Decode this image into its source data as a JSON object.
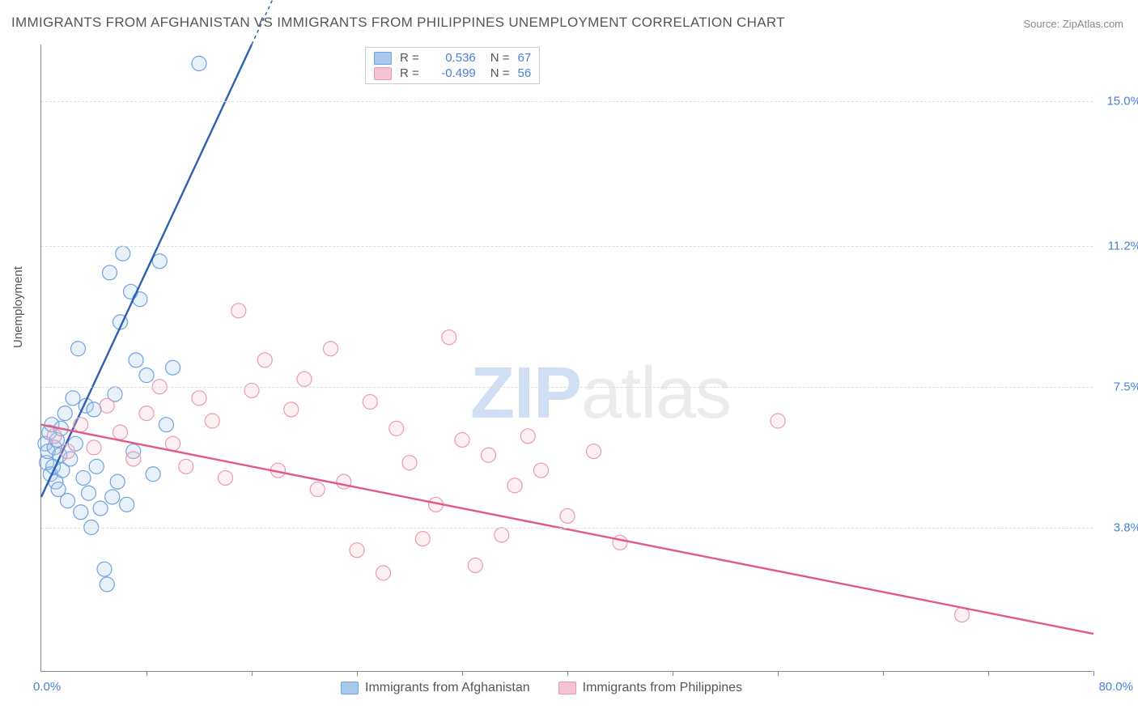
{
  "title": "IMMIGRANTS FROM AFGHANISTAN VS IMMIGRANTS FROM PHILIPPINES UNEMPLOYMENT CORRELATION CHART",
  "source": "Source: ZipAtlas.com",
  "watermark": {
    "left": "ZIP",
    "right": "atlas"
  },
  "ylabel": "Unemployment",
  "chart": {
    "type": "scatter",
    "background_color": "#ffffff",
    "grid_color": "#dddddd",
    "axis_color": "#888888",
    "label_color": "#4a7fd6",
    "xlim": [
      0,
      80
    ],
    "ylim": [
      0,
      16.5
    ],
    "x_min_label": "0.0%",
    "x_max_label": "80.0%",
    "yticks": [
      {
        "v": 3.8,
        "label": "3.8%"
      },
      {
        "v": 7.5,
        "label": "7.5%"
      },
      {
        "v": 11.2,
        "label": "11.2%"
      },
      {
        "v": 15.0,
        "label": "15.0%"
      }
    ],
    "xticks": [
      8,
      16,
      24,
      32,
      40,
      48,
      56,
      64,
      72,
      80
    ],
    "marker_radius": 9,
    "marker_stroke_width": 1.2,
    "marker_fill_opacity": 0.25,
    "trend_line_width": 2.4,
    "series": [
      {
        "name": "Immigrants from Afghanistan",
        "color": "#6fa3e0",
        "line_color": "#2e5fb0",
        "fill": "#a8c8ec",
        "R": "0.536",
        "N": "67",
        "trend": {
          "x1": 0,
          "y1": 4.6,
          "x2": 16,
          "y2": 16.5,
          "dashed_extension": true
        },
        "points": [
          {
            "x": 0.3,
            "y": 6.0
          },
          {
            "x": 0.4,
            "y": 5.5
          },
          {
            "x": 0.5,
            "y": 5.8
          },
          {
            "x": 0.6,
            "y": 6.3
          },
          {
            "x": 0.7,
            "y": 5.2
          },
          {
            "x": 0.8,
            "y": 6.5
          },
          {
            "x": 0.9,
            "y": 5.4
          },
          {
            "x": 1.0,
            "y": 5.9
          },
          {
            "x": 1.1,
            "y": 5.0
          },
          {
            "x": 1.2,
            "y": 6.1
          },
          {
            "x": 1.3,
            "y": 4.8
          },
          {
            "x": 1.4,
            "y": 5.7
          },
          {
            "x": 1.5,
            "y": 6.4
          },
          {
            "x": 1.6,
            "y": 5.3
          },
          {
            "x": 1.8,
            "y": 6.8
          },
          {
            "x": 2.0,
            "y": 4.5
          },
          {
            "x": 2.2,
            "y": 5.6
          },
          {
            "x": 2.4,
            "y": 7.2
          },
          {
            "x": 2.6,
            "y": 6.0
          },
          {
            "x": 2.8,
            "y": 8.5
          },
          {
            "x": 3.0,
            "y": 4.2
          },
          {
            "x": 3.2,
            "y": 5.1
          },
          {
            "x": 3.4,
            "y": 7.0
          },
          {
            "x": 3.6,
            "y": 4.7
          },
          {
            "x": 3.8,
            "y": 3.8
          },
          {
            "x": 4.0,
            "y": 6.9
          },
          {
            "x": 4.2,
            "y": 5.4
          },
          {
            "x": 4.5,
            "y": 4.3
          },
          {
            "x": 4.8,
            "y": 2.7
          },
          {
            "x": 5.0,
            "y": 2.3
          },
          {
            "x": 5.2,
            "y": 10.5
          },
          {
            "x": 5.4,
            "y": 4.6
          },
          {
            "x": 5.6,
            "y": 7.3
          },
          {
            "x": 5.8,
            "y": 5.0
          },
          {
            "x": 6.0,
            "y": 9.2
          },
          {
            "x": 6.2,
            "y": 11.0
          },
          {
            "x": 6.5,
            "y": 4.4
          },
          {
            "x": 6.8,
            "y": 10.0
          },
          {
            "x": 7.0,
            "y": 5.8
          },
          {
            "x": 7.2,
            "y": 8.2
          },
          {
            "x": 7.5,
            "y": 9.8
          },
          {
            "x": 8.0,
            "y": 7.8
          },
          {
            "x": 8.5,
            "y": 5.2
          },
          {
            "x": 9.0,
            "y": 10.8
          },
          {
            "x": 9.5,
            "y": 6.5
          },
          {
            "x": 10.0,
            "y": 8.0
          },
          {
            "x": 12.0,
            "y": 16.0
          }
        ]
      },
      {
        "name": "Immigrants from Philippines",
        "color": "#e89bb0",
        "line_color": "#e05a85",
        "fill": "#f5c3d1",
        "R": "-0.499",
        "N": "56",
        "trend": {
          "x1": 0,
          "y1": 6.5,
          "x2": 80,
          "y2": 1.0,
          "dashed_extension": false
        },
        "points": [
          {
            "x": 1.0,
            "y": 6.2
          },
          {
            "x": 2.0,
            "y": 5.8
          },
          {
            "x": 3.0,
            "y": 6.5
          },
          {
            "x": 4.0,
            "y": 5.9
          },
          {
            "x": 5.0,
            "y": 7.0
          },
          {
            "x": 6.0,
            "y": 6.3
          },
          {
            "x": 7.0,
            "y": 5.6
          },
          {
            "x": 8.0,
            "y": 6.8
          },
          {
            "x": 9.0,
            "y": 7.5
          },
          {
            "x": 10.0,
            "y": 6.0
          },
          {
            "x": 11.0,
            "y": 5.4
          },
          {
            "x": 12.0,
            "y": 7.2
          },
          {
            "x": 13.0,
            "y": 6.6
          },
          {
            "x": 14.0,
            "y": 5.1
          },
          {
            "x": 15.0,
            "y": 9.5
          },
          {
            "x": 16.0,
            "y": 7.4
          },
          {
            "x": 17.0,
            "y": 8.2
          },
          {
            "x": 18.0,
            "y": 5.3
          },
          {
            "x": 19.0,
            "y": 6.9
          },
          {
            "x": 20.0,
            "y": 7.7
          },
          {
            "x": 21.0,
            "y": 4.8
          },
          {
            "x": 22.0,
            "y": 8.5
          },
          {
            "x": 23.0,
            "y": 5.0
          },
          {
            "x": 24.0,
            "y": 3.2
          },
          {
            "x": 25.0,
            "y": 7.1
          },
          {
            "x": 26.0,
            "y": 2.6
          },
          {
            "x": 27.0,
            "y": 6.4
          },
          {
            "x": 28.0,
            "y": 5.5
          },
          {
            "x": 29.0,
            "y": 3.5
          },
          {
            "x": 30.0,
            "y": 4.4
          },
          {
            "x": 31.0,
            "y": 8.8
          },
          {
            "x": 32.0,
            "y": 6.1
          },
          {
            "x": 33.0,
            "y": 2.8
          },
          {
            "x": 34.0,
            "y": 5.7
          },
          {
            "x": 35.0,
            "y": 3.6
          },
          {
            "x": 36.0,
            "y": 4.9
          },
          {
            "x": 37.0,
            "y": 6.2
          },
          {
            "x": 38.0,
            "y": 5.3
          },
          {
            "x": 40.0,
            "y": 4.1
          },
          {
            "x": 42.0,
            "y": 5.8
          },
          {
            "x": 44.0,
            "y": 3.4
          },
          {
            "x": 56.0,
            "y": 6.6
          },
          {
            "x": 70.0,
            "y": 1.5
          }
        ]
      }
    ]
  },
  "legend_top": {
    "R_label": "R =",
    "N_label": "N ="
  },
  "legend_bottom_labels": [
    "Immigrants from Afghanistan",
    "Immigrants from Philippines"
  ]
}
